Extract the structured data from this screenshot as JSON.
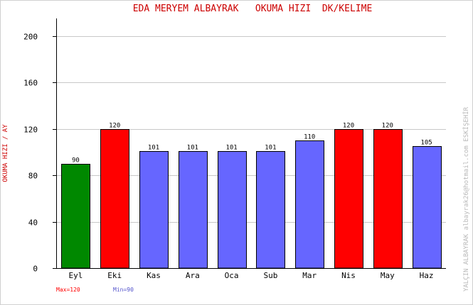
{
  "chart_data": {
    "type": "bar",
    "title": "EDA MERYEM ALBAYRAK   OKUMA HIZI  DK/KELIME",
    "ylabel": "OKUMA HIZI / AY",
    "side_note": "YALÇIN ALBAYRAK  albayrak26@hotmail.com  ESKİŞEHİR",
    "categories": [
      "Eyl",
      "Eki",
      "Kas",
      "Ara",
      "Oca",
      "Sub",
      "Mar",
      "Nis",
      "May",
      "Haz"
    ],
    "values": [
      90,
      120,
      101,
      101,
      101,
      101,
      110,
      120,
      120,
      105
    ],
    "bar_colors": [
      "#008800",
      "#ff0000",
      "#6666ff",
      "#6666ff",
      "#6666ff",
      "#6666ff",
      "#6666ff",
      "#ff0000",
      "#ff0000",
      "#6666ff"
    ],
    "ylim": [
      0,
      215
    ],
    "yticks": [
      0,
      40,
      80,
      120,
      160,
      200
    ],
    "grid": true,
    "max_label": "Max=120",
    "min_label": "Min=90",
    "colors": {
      "title": "#cc0000",
      "max": "#ff0000",
      "min": "#5555cc",
      "grid": "#c8c8c8"
    }
  }
}
